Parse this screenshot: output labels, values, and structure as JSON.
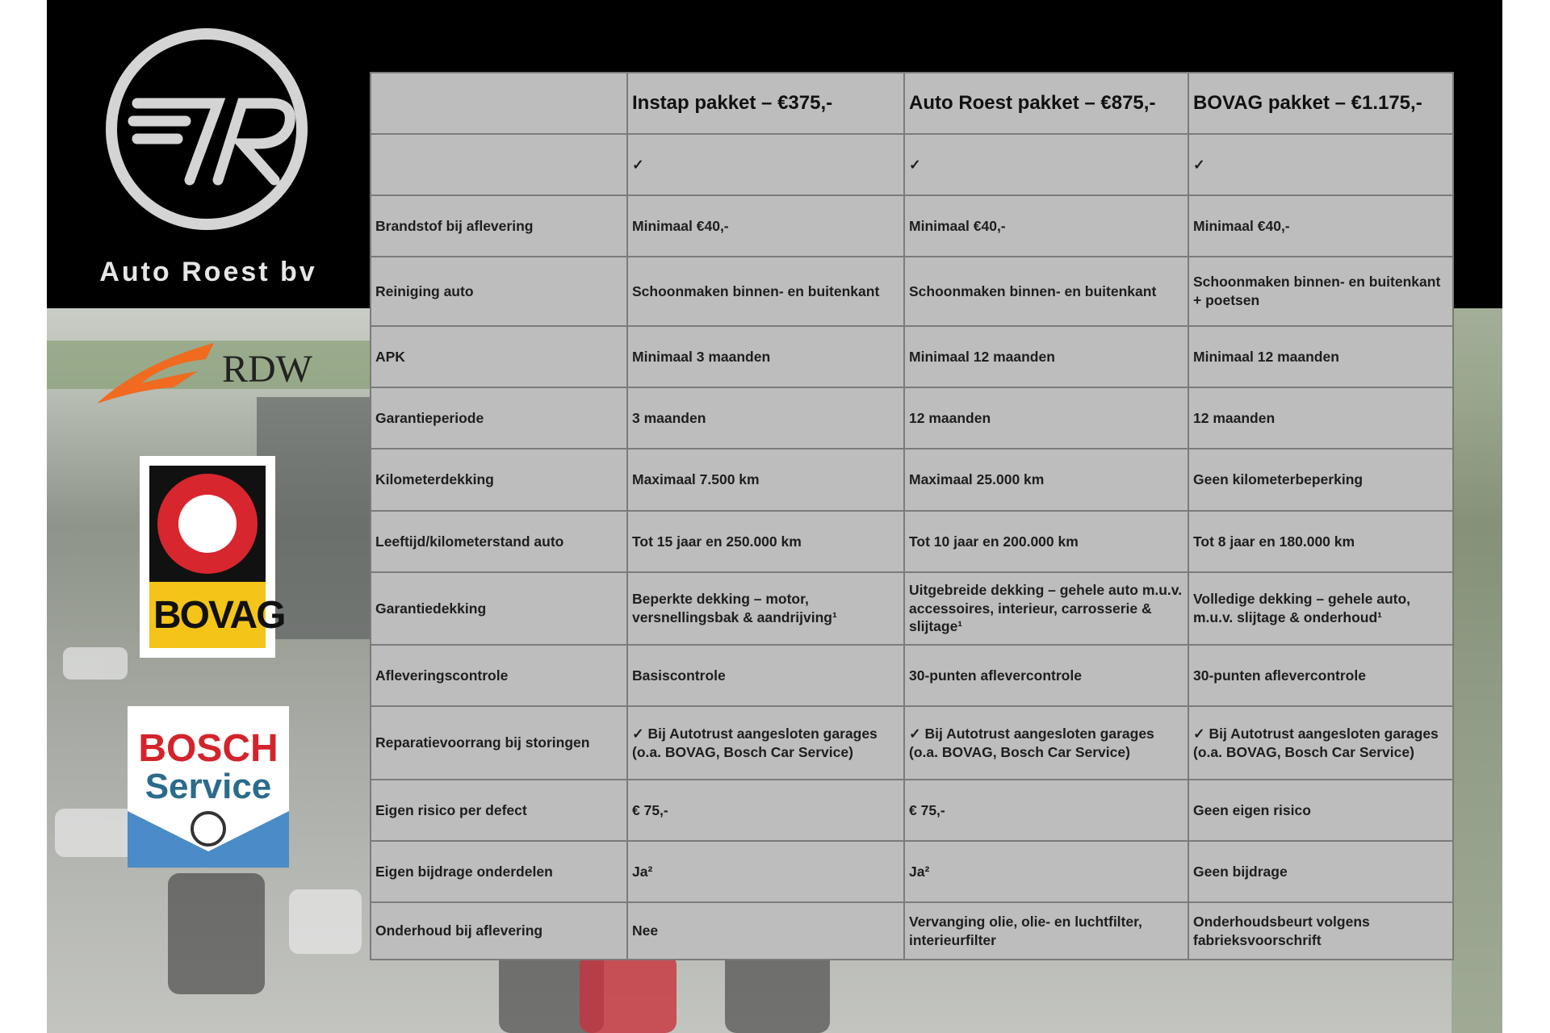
{
  "brand": {
    "name": "Auto Roest bv",
    "partners": {
      "rdw": "RDW",
      "bovag": "BOVAG",
      "bosch": "BOSCH",
      "bosch_sub": "Service"
    }
  },
  "table": {
    "columns": [
      "Instap pakket – €375,-",
      "Auto Roest pakket – €875,-",
      "BOVAG pakket – €1.175,-"
    ],
    "checks": [
      "✓",
      "✓",
      "✓"
    ],
    "rows": [
      {
        "label": "Brandstof bij aflevering",
        "cells": [
          "Minimaal €40,-",
          "Minimaal €40,-",
          "Minimaal €40,-"
        ]
      },
      {
        "label": "Reiniging auto",
        "cells": [
          "Schoonmaken binnen- en buitenkant",
          "Schoonmaken binnen- en buitenkant",
          "Schoonmaken binnen- en buitenkant + poetsen"
        ]
      },
      {
        "label": "APK",
        "cells": [
          "Minimaal 3 maanden",
          "Minimaal 12 maanden",
          "Minimaal 12 maanden"
        ]
      },
      {
        "label": "Garantieperiode",
        "cells": [
          "3 maanden",
          "12 maanden",
          "12 maanden"
        ]
      },
      {
        "label": "Kilometerdekking",
        "cells": [
          "Maximaal 7.500 km",
          "Maximaal 25.000 km",
          "Geen kilometerbeperking"
        ]
      },
      {
        "label": "Leeftijd/kilometerstand auto",
        "cells": [
          "Tot 15 jaar en 250.000 km",
          "Tot 10 jaar en 200.000 km",
          "Tot 8 jaar en 180.000 km"
        ]
      },
      {
        "label": "Garantiedekking",
        "cells": [
          "Beperkte dekking – motor, versnellingsbak & aandrijving¹",
          "Uitgebreide dekking – gehele auto m.u.v. accessoires, interieur, carrosserie & slijtage¹",
          "Volledige dekking – gehele auto, m.u.v. slijtage & onderhoud¹"
        ]
      },
      {
        "label": "Afleveringscontrole",
        "cells": [
          "Basiscontrole",
          "30-punten aflevercontrole",
          "30-punten aflevercontrole"
        ]
      },
      {
        "label": "Reparatievoorrang bij storingen",
        "cells": [
          "✓ Bij Autotrust aangesloten garages (o.a. BOVAG, Bosch Car Service)",
          "✓ Bij Autotrust aangesloten garages (o.a. BOVAG, Bosch Car Service)",
          "✓ Bij Autotrust aangesloten garages (o.a. BOVAG, Bosch Car Service)"
        ]
      },
      {
        "label": "Eigen risico per defect",
        "cells": [
          "€ 75,-",
          "€ 75,-",
          "Geen eigen risico"
        ]
      },
      {
        "label": "Eigen bijdrage onderdelen",
        "cells": [
          "Ja²",
          "Ja²",
          "Geen bijdrage"
        ]
      },
      {
        "label": "Onderhoud bij aflevering",
        "cells": [
          "Nee",
          "Vervanging olie, olie- en luchtfilter, interieurfilter",
          "Onderhoudsbeurt volgens fabrieksvoorschrift"
        ]
      }
    ]
  }
}
